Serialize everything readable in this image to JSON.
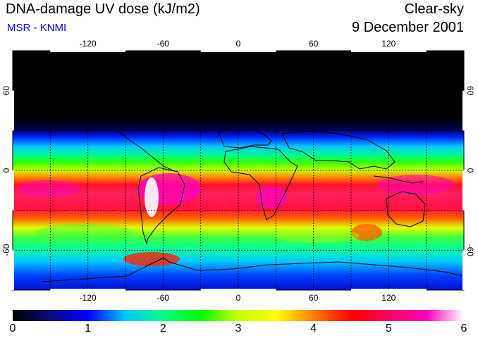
{
  "header": {
    "title": "DNA-damage UV dose (kJ/m2)",
    "subtitle": "MSR - KNMI",
    "mode": "Clear-sky",
    "date": "9 December 2001"
  },
  "map": {
    "lon_ticks": [
      "-120",
      "-60",
      "0",
      "60",
      "120"
    ],
    "lat_ticks_left": [
      "60",
      "0",
      "-60"
    ],
    "lat_ticks_right": [
      "60",
      "0",
      "-60"
    ]
  },
  "colorbar": {
    "labels": [
      "0",
      "1",
      "2",
      "3",
      "4",
      "5",
      "6"
    ],
    "colors": [
      "#000000",
      "#0a0a80",
      "#0000ff",
      "#00c8ff",
      "#00ff80",
      "#00ff00",
      "#c8ff00",
      "#ffff00",
      "#ff8000",
      "#ff0000",
      "#ff0060",
      "#ff00c0",
      "#ffffff"
    ]
  }
}
